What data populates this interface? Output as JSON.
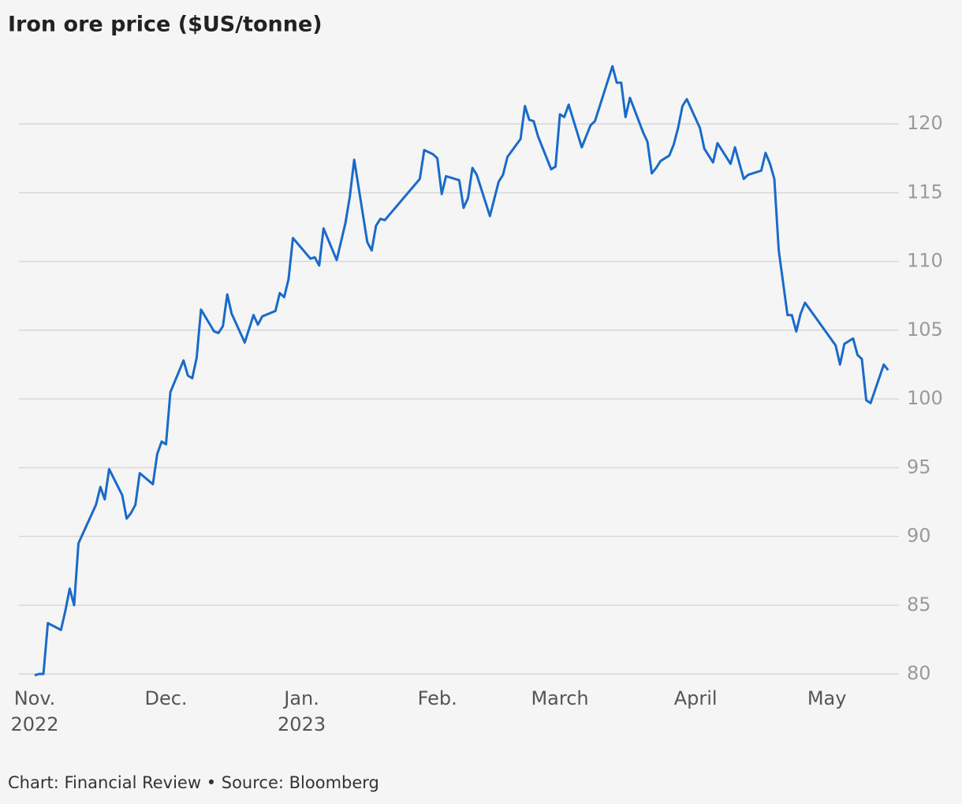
{
  "chart_data": {
    "type": "line",
    "title": "Iron ore price ($US/tonne)",
    "source": "Chart: Financial Review • Source: Bloomberg",
    "x": [
      0,
      1,
      2,
      3,
      6,
      7,
      8,
      9,
      10,
      14,
      15,
      16,
      17,
      20,
      21,
      22,
      23,
      24,
      27,
      28,
      29,
      30,
      31,
      34,
      35,
      36,
      37,
      38,
      41,
      42,
      43,
      44,
      45,
      48,
      50,
      51,
      52,
      55,
      56,
      57,
      58,
      59,
      63,
      64,
      65,
      66,
      69,
      71,
      72,
      73,
      76,
      77,
      78,
      79,
      80,
      88,
      89,
      91,
      92,
      93,
      94,
      97,
      98,
      99,
      100,
      101,
      104,
      106,
      107,
      108,
      111,
      112,
      113,
      114,
      115,
      118,
      119,
      120,
      121,
      122,
      125,
      127,
      128,
      132,
      133,
      134,
      135,
      136,
      139,
      140,
      141,
      142,
      143,
      145,
      146,
      147,
      148,
      149,
      152,
      153,
      155,
      156,
      159,
      160,
      162,
      163,
      166,
      167,
      168,
      169,
      170,
      172,
      173,
      174,
      175,
      176,
      183,
      184,
      185,
      187,
      188,
      189,
      190,
      191,
      194,
      195
    ],
    "series": [
      {
        "name": "Iron ore price",
        "color": "#1a6ac9",
        "values": [
          79.9,
          80.0,
          80.0,
          83.7,
          83.2,
          84.6,
          86.2,
          85.0,
          89.5,
          92.3,
          93.6,
          92.7,
          94.9,
          93.0,
          91.3,
          91.7,
          92.3,
          94.6,
          93.8,
          96.0,
          96.9,
          96.7,
          100.5,
          102.8,
          101.7,
          101.5,
          103.0,
          106.5,
          104.9,
          104.8,
          105.3,
          107.6,
          106.2,
          104.1,
          106.1,
          105.4,
          106.0,
          106.4,
          107.7,
          107.4,
          108.7,
          111.7,
          110.2,
          110.3,
          109.7,
          112.4,
          110.1,
          112.8,
          114.7,
          117.4,
          111.4,
          110.8,
          112.6,
          113.1,
          113.0,
          116.0,
          118.1,
          117.8,
          117.5,
          114.9,
          116.2,
          115.9,
          113.9,
          114.6,
          116.8,
          116.3,
          113.3,
          115.8,
          116.3,
          117.6,
          118.9,
          121.3,
          120.3,
          120.2,
          119.1,
          116.7,
          116.9,
          120.7,
          120.5,
          121.4,
          118.3,
          119.9,
          120.2,
          124.2,
          123.0,
          123.0,
          120.5,
          121.9,
          119.4,
          118.7,
          116.4,
          116.8,
          117.3,
          117.7,
          118.5,
          119.7,
          121.3,
          121.8,
          119.7,
          118.2,
          117.2,
          118.6,
          117.1,
          118.3,
          116.0,
          116.3,
          116.6,
          117.9,
          117.1,
          116.0,
          110.8,
          106.1,
          106.1,
          104.9,
          106.2,
          107.0,
          103.9,
          102.5,
          104.0,
          104.4,
          103.2,
          102.9,
          99.9,
          99.7,
          102.5,
          102.1
        ]
      }
    ],
    "xlim": [
      0,
      198
    ],
    "xticks": [
      {
        "value": 0,
        "label": "Nov.",
        "sublabel": "2022"
      },
      {
        "value": 30,
        "label": "Dec."
      },
      {
        "value": 61,
        "label": "Jan.",
        "sublabel": "2023"
      },
      {
        "value": 92,
        "label": "Feb."
      },
      {
        "value": 120,
        "label": "March"
      },
      {
        "value": 151,
        "label": "April"
      },
      {
        "value": 181,
        "label": "May"
      }
    ],
    "ylim": [
      80,
      125
    ],
    "yticks": [
      80,
      85,
      90,
      95,
      100,
      105,
      110,
      115,
      120
    ],
    "grid": true
  }
}
